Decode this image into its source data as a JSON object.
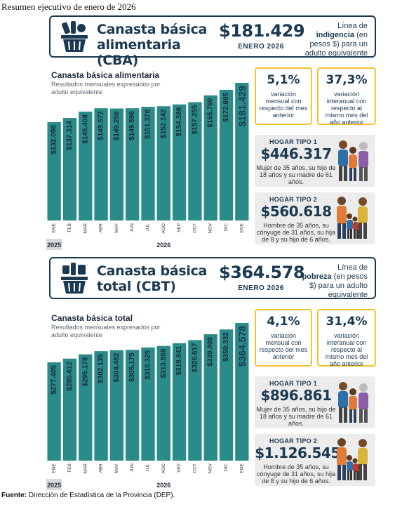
{
  "doc_title": "Resumen ejecutivo de enero de 2026",
  "cba": {
    "name": "Canasta básica alimentaria (CBA)",
    "value": "$181.429",
    "period": "ENERO 2026",
    "note_prefix": "Línea de",
    "note_bold": "indigencia",
    "note_suffix": "(en pesos $) para un adulto equivalente",
    "chart_title": "Canasta básica alimentaria",
    "chart_subtitle": "Resultados mensuales expresados por adulto equivalente",
    "monthly_variation": {
      "value": "5,1%",
      "label": "variación mensual con respecto del mes anterior"
    },
    "annual_variation": {
      "value": "37,3%",
      "label": "variación interanual con respecto al mismo mes del año anterior"
    },
    "hogar1": {
      "label": "HOGAR TIPO 1",
      "value": "$446.317",
      "desc": "Mujer de 35 años, su hijo de 18 años y su madre de 61 años."
    },
    "hogar2": {
      "label": "HOGAR TIPO 2",
      "value": "$560.618",
      "desc": "Hombre de 35 años, su cónyuge de 31 años, su hija de 8 y su hijo de 6 años."
    }
  },
  "cbt": {
    "name": "Canasta básica total (CBT)",
    "value": "$364.578",
    "period": "ENERO 2026",
    "note_prefix": "Línea de",
    "note_bold": "pobreza",
    "note_suffix": "(en pesos $) para un adulto equivalente",
    "chart_title": "Canasta básica total",
    "chart_subtitle": "Resultados mensuales expresados por adulto equivalente",
    "monthly_variation": {
      "value": "4,1%",
      "label": "variación mensual con respecto del mes anterior"
    },
    "annual_variation": {
      "value": "31,4%",
      "label": "variación interanual con respecto al mismo mes del año anterior"
    },
    "hogar1": {
      "label": "HOGAR TIPO 1",
      "value": "$896.861",
      "desc": "Mujer de 35 años, su hijo de 18 años y su madre de 61 años."
    },
    "hogar2": {
      "label": "HOGAR TIPO 2",
      "value": "$1.126.545",
      "desc": "Hombre de 35 años, su cónyuge de 31 años, su hija de 8 y su hijo de 6 años."
    }
  },
  "source_label": "Fuente:",
  "source_text": "Dirección de Estadística de la Provincia (DEP).",
  "colors": {
    "bar": "#2b8a8a",
    "navy": "#1b3a52",
    "accent": "#f2c430",
    "panel": "#ececec"
  },
  "chart_data": [
    {
      "type": "bar",
      "title": "Canasta básica alimentaria",
      "subtitle": "Resultados mensuales expresados por adulto equivalente",
      "categories": [
        "ENE",
        "FEB",
        "MAR",
        "ABR",
        "MAY",
        "JUN",
        "JUL",
        "AGO",
        "SEP",
        "OCT",
        "NOV",
        "DIC",
        "ENE"
      ],
      "year_labels": [
        "2025",
        "2026"
      ],
      "values": [
        132098,
        137314,
        145408,
        149572,
        149256,
        149596,
        151378,
        152142,
        154386,
        157255,
        165760,
        172695,
        181429
      ],
      "value_labels": [
        "$132.098",
        "$137.314",
        "$145.408",
        "$149.572",
        "$149.256",
        "$149.596",
        "$151.378",
        "$152.142",
        "$154.386",
        "$157.255",
        "$165.760",
        "$172.695",
        "$181.429"
      ]
    },
    {
      "type": "bar",
      "title": "Canasta básica total",
      "subtitle": "Resultados mensuales expresados por adulto equivalente",
      "categories": [
        "ENE",
        "FEB",
        "MAR",
        "ABR",
        "MAY",
        "JUN",
        "JUL",
        "AGO",
        "SEP",
        "OCT",
        "NOV",
        "DIC",
        "ENE"
      ],
      "year_labels": [
        "2025",
        "2026"
      ],
      "values": [
        277405,
        285612,
        295178,
        302135,
        304482,
        305175,
        310325,
        313859,
        319941,
        326617,
        339808,
        350332,
        364578
      ],
      "value_labels": [
        "$277.405",
        "$285.612",
        "$295.178",
        "$302.135",
        "$304.482",
        "$305.175",
        "$310.325",
        "$313.859",
        "$319.941",
        "$326.617",
        "$339.808",
        "$350.332",
        "$364.578"
      ]
    }
  ]
}
